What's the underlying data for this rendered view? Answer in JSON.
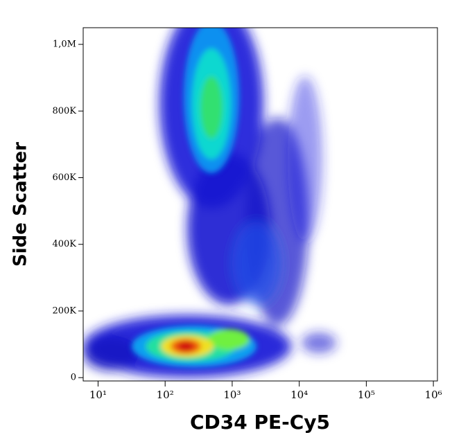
{
  "chart_data": {
    "type": "density",
    "xlabel": "CD34 PE-Cy5",
    "ylabel": "Side Scatter",
    "xscale": "log",
    "xlim": [
      6,
      1150000
    ],
    "xticks": [
      {
        "value": 10,
        "label": "10¹"
      },
      {
        "value": 100,
        "label": "10²"
      },
      {
        "value": 1000,
        "label": "10³"
      },
      {
        "value": 10000,
        "label": "10⁴"
      },
      {
        "value": 100000,
        "label": "10⁵"
      },
      {
        "value": 1000000,
        "label": "10⁶"
      }
    ],
    "ylim": [
      -10000,
      1050000
    ],
    "yticks": [
      0,
      {
        "value": 200000,
        "label": "200K"
      },
      {
        "value": 400000,
        "label": "400K"
      },
      {
        "value": 600000,
        "label": "600K"
      },
      {
        "value": 800000,
        "label": "800K"
      },
      {
        "value": 1000000,
        "label": "1,0M"
      }
    ]
  }
}
